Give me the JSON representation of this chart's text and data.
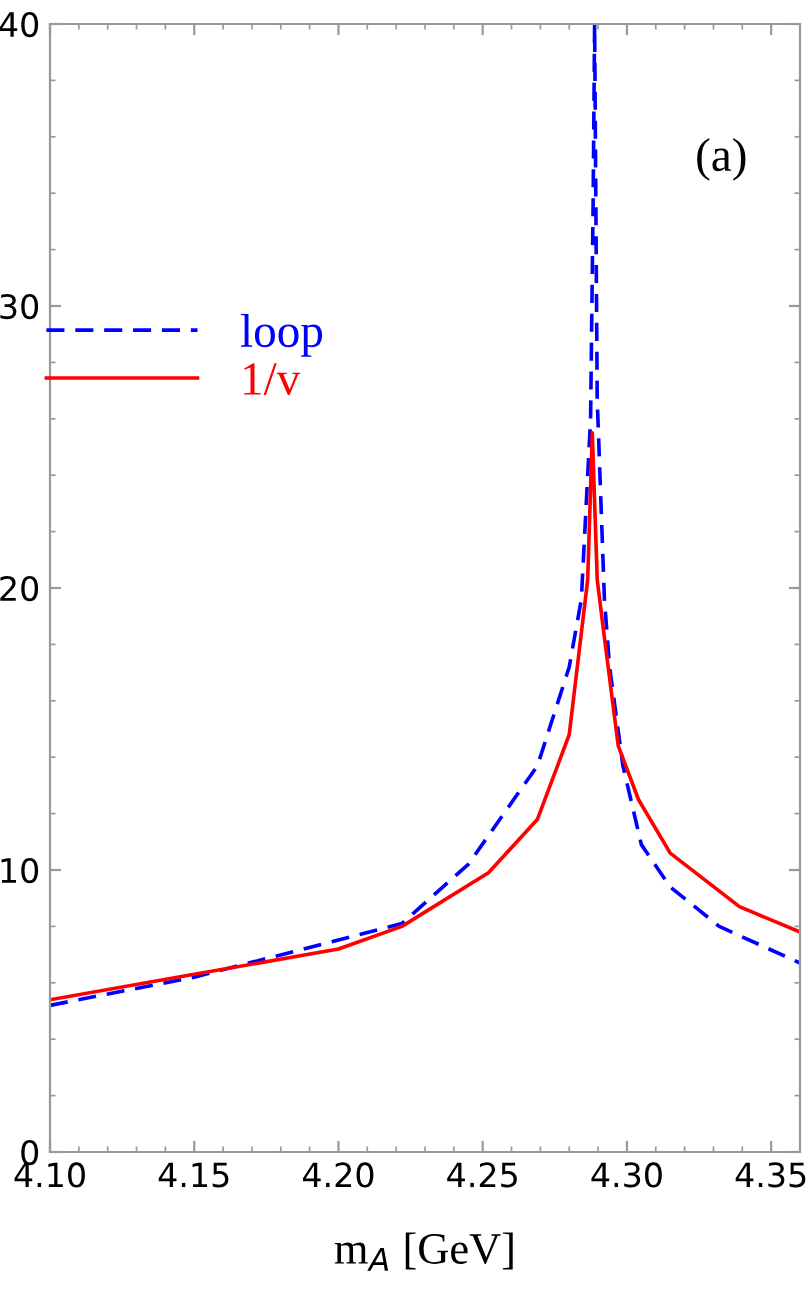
{
  "chart_data": {
    "type": "line",
    "xlabel": "m$_{A}$ [GeV]",
    "annotations": [
      "(a)"
    ],
    "xlim": [
      4.1,
      4.36
    ],
    "ylim": [
      0,
      40
    ],
    "xticks": [
      {
        "value": 4.1,
        "label": "4.10"
      },
      4.15,
      {
        "value": 4.2,
        "label": "4.20"
      },
      4.25,
      {
        "value": 4.3,
        "label": "4.30"
      },
      4.35
    ],
    "yticks": [
      0,
      10,
      20,
      30,
      40
    ],
    "grid": false,
    "legend": "top left",
    "series": [
      {
        "name": "loop",
        "color": "#0000ff",
        "line_style": "dashed",
        "x": [
          4.1,
          4.15,
          4.222,
          4.245,
          4.269,
          4.28,
          4.2842,
          4.2874,
          4.2883,
          4.2888,
          4.2897,
          4.2922,
          4.294,
          4.2986,
          4.305,
          4.315,
          4.332,
          4.36
        ],
        "values": [
          5.2,
          6.2,
          8.1,
          10.2,
          13.7,
          17.2,
          19.6,
          26.0,
          33.8,
          40,
          26.7,
          19.6,
          17.2,
          13.7,
          10.9,
          9.4,
          8.0,
          6.7
        ]
      },
      {
        "name": "1/v",
        "color": "#ff0000",
        "line_style": "solid",
        "x": [
          4.1,
          4.15,
          4.2,
          4.222,
          4.252,
          4.269,
          4.28,
          4.2864,
          4.288,
          4.2897,
          4.292,
          4.297,
          4.304,
          4.315,
          4.339,
          4.36
        ],
        "values": [
          5.4,
          6.3,
          7.2,
          8.0,
          9.9,
          11.8,
          14.8,
          20.3,
          25.5,
          20.3,
          18.4,
          14.4,
          12.5,
          10.6,
          8.7,
          7.8
        ]
      }
    ]
  }
}
